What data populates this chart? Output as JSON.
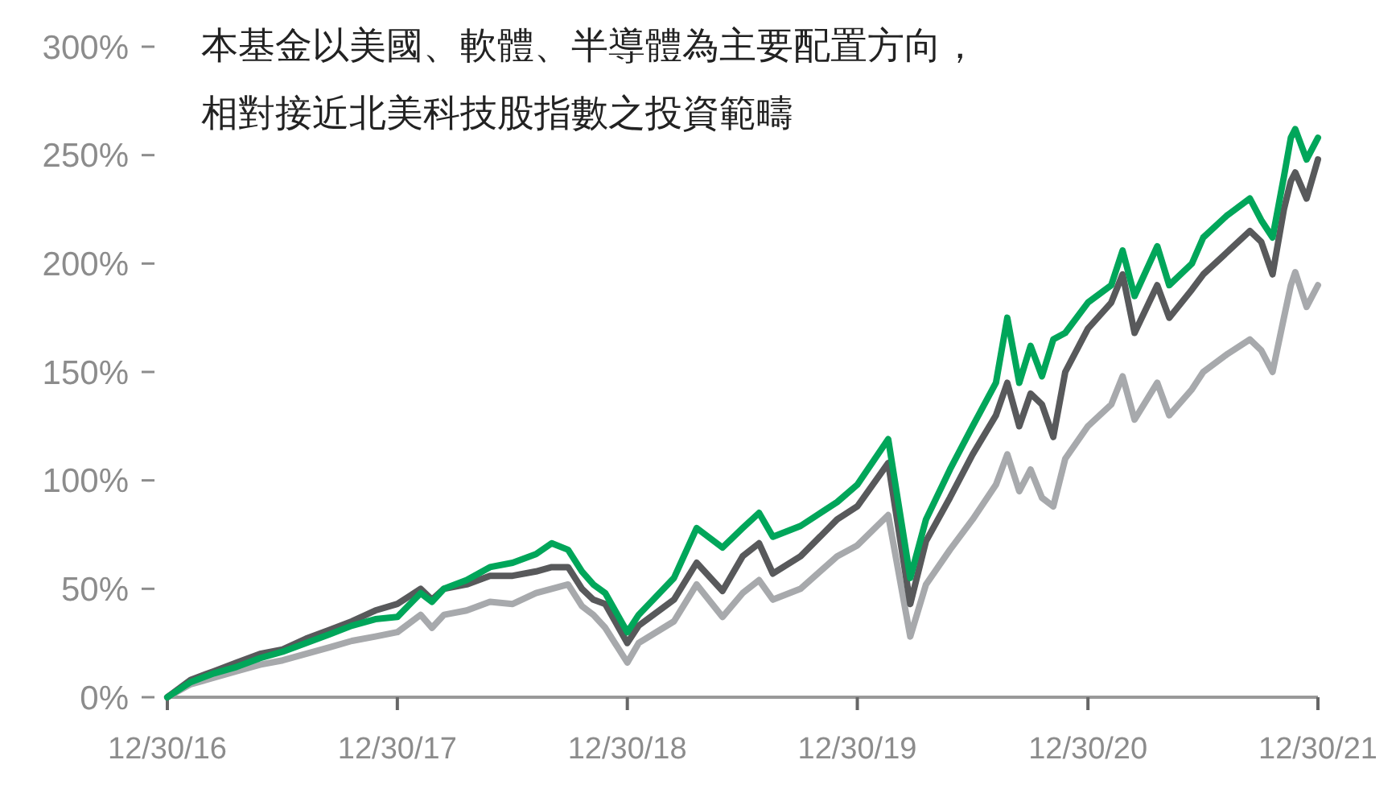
{
  "chart_data": {
    "type": "line",
    "title": "本基金以美國、軟體、半導體為主要配置方向，",
    "subtitle": "相對接近北美科技股指數之投資範疇",
    "x": [
      "2016-12-30",
      "2017-02-05",
      "2017-03-14",
      "2017-04-19",
      "2017-05-26",
      "2017-07-01",
      "2017-08-07",
      "2017-09-13",
      "2017-10-19",
      "2017-11-25",
      "2017-12-30",
      "2018-02-05",
      "2018-02-23",
      "2018-03-14",
      "2018-04-19",
      "2018-05-26",
      "2018-07-01",
      "2018-08-07",
      "2018-09-01",
      "2018-09-27",
      "2018-10-19",
      "2018-11-06",
      "2018-11-25",
      "2018-12-30",
      "2019-01-17",
      "2019-03-14",
      "2019-04-19",
      "2019-05-30",
      "2019-07-01",
      "2019-07-27",
      "2019-08-18",
      "2019-10-01",
      "2019-11-28",
      "2019-12-30",
      "2020-02-17",
      "2020-03-23",
      "2020-04-17",
      "2020-05-25",
      "2020-06-30",
      "2020-08-06",
      "2020-08-24",
      "2020-09-12",
      "2020-09-30",
      "2020-10-18",
      "2020-11-05",
      "2020-11-24",
      "2020-12-30",
      "2021-02-05",
      "2021-02-23",
      "2021-03-14",
      "2021-04-19",
      "2021-05-08",
      "2021-06-13",
      "2021-07-01",
      "2021-08-07",
      "2021-09-13",
      "2021-10-01",
      "2021-10-19",
      "2021-11-06",
      "2021-11-17",
      "2021-11-24",
      "2021-12-12",
      "2021-12-30"
    ],
    "series": [
      {
        "color": "#a7a9ac",
        "values": [
          0,
          6,
          9,
          12,
          15,
          17,
          20,
          23,
          26,
          28,
          30,
          38,
          32,
          38,
          40,
          44,
          43,
          48,
          50,
          52,
          42,
          38,
          32,
          16,
          25,
          35,
          52,
          37,
          48,
          54,
          45,
          50,
          65,
          70,
          84,
          28,
          52,
          68,
          82,
          98,
          112,
          95,
          105,
          92,
          88,
          110,
          125,
          135,
          148,
          128,
          145,
          130,
          142,
          150,
          158,
          165,
          160,
          150,
          175,
          190,
          196,
          180,
          190
        ]
      },
      {
        "color": "#58595b",
        "values": [
          0,
          8,
          12,
          16,
          20,
          22,
          27,
          31,
          35,
          40,
          43,
          50,
          45,
          50,
          52,
          56,
          56,
          58,
          60,
          60,
          50,
          45,
          43,
          25,
          33,
          45,
          62,
          49,
          65,
          71,
          57,
          65,
          82,
          88,
          108,
          43,
          72,
          92,
          112,
          130,
          145,
          125,
          140,
          135,
          120,
          150,
          170,
          182,
          195,
          168,
          190,
          175,
          188,
          195,
          205,
          215,
          210,
          195,
          225,
          238,
          242,
          230,
          248
        ]
      },
      {
        "color": "#00a65a",
        "values": [
          0,
          7,
          11,
          14,
          18,
          21,
          25,
          29,
          33,
          36,
          37,
          48,
          44,
          50,
          54,
          60,
          62,
          66,
          71,
          68,
          58,
          52,
          48,
          30,
          38,
          55,
          78,
          69,
          78,
          85,
          74,
          79,
          90,
          98,
          119,
          55,
          82,
          105,
          125,
          145,
          175,
          145,
          162,
          148,
          165,
          168,
          182,
          190,
          206,
          185,
          208,
          190,
          200,
          212,
          222,
          230,
          220,
          212,
          240,
          258,
          262,
          248,
          258
        ]
      }
    ],
    "xlim": [
      "2016-12-30",
      "2021-12-30"
    ],
    "xticks": [
      {
        "value": "2016-12-30",
        "label": "12/30/16"
      },
      {
        "value": "2017-12-30",
        "label": "12/30/17"
      },
      {
        "value": "2018-12-30",
        "label": "12/30/18"
      },
      {
        "value": "2019-12-30",
        "label": "12/30/19"
      },
      {
        "value": "2020-12-30",
        "label": "12/30/20"
      },
      {
        "value": "2021-12-30",
        "label": "12/30/21"
      }
    ],
    "ylim": [
      0,
      300
    ],
    "yticks": [
      {
        "value": 0,
        "label": "0%"
      },
      {
        "value": 50,
        "label": "50%"
      },
      {
        "value": 100,
        "label": "100%"
      },
      {
        "value": 150,
        "label": "150%"
      },
      {
        "value": 200,
        "label": "200%"
      },
      {
        "value": 250,
        "label": "250%"
      },
      {
        "value": 300,
        "label": "300%"
      }
    ],
    "grid": false,
    "line_style": "solid",
    "marker": "none"
  }
}
